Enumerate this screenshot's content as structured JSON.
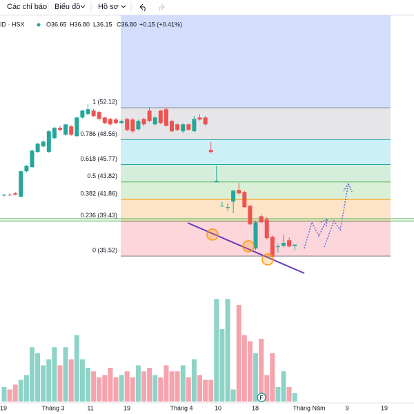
{
  "toolbar": {
    "indicators": "Các chỉ báo",
    "chart": "Biểu đồ",
    "profile": "Hồ sơ"
  },
  "chart_data": {
    "type": "candlestick",
    "symbol": "ID · HSX",
    "legend": {
      "open": "O36.65",
      "high": "H36.80",
      "low": "L36.15",
      "close": "C36.80",
      "change": "+0.15 (+0.41%)"
    },
    "up_color": "#26a69a",
    "down_color": "#ef5350",
    "volume_up_color": "#8fd3c8",
    "volume_down_color": "#f5a3ad",
    "ylim": [
      29.5,
      62.5
    ],
    "open": [
      42.31,
      42.39,
      42.54,
      42.16,
      45.02,
      45.48,
      47.18,
      47.8,
      47.18,
      48.72,
      49.88,
      49.11,
      50.04,
      48.95,
      51.04,
      51.42,
      51.81,
      51.66,
      51.04,
      50.88,
      50.81,
      50.42,
      50.88,
      50.81,
      49.73,
      50.88,
      51.81,
      50.27,
      51.81,
      51.97,
      50.65,
      50.27,
      49.5,
      50.27,
      49.5,
      51.04,
      51.04,
      47.41,
      43.78,
      41.15,
      41.0,
      41.62,
      42.93,
      42.7,
      41.15,
      36.37,
      39.98,
      39.61,
      37.68,
      36.52,
      36.68,
      37.29,
      36.65
    ],
    "high": [
      42.47,
      42.54,
      42.7,
      45.1,
      45.7,
      47.4,
      48.2,
      48.5,
      49.6,
      50.0,
      50.1,
      50.3,
      50.2,
      51.1,
      51.9,
      52.58,
      52.0,
      51.8,
      51.1,
      51.0,
      51.0,
      50.8,
      51.0,
      51.0,
      50.8,
      51.0,
      52.2,
      51.2,
      51.9,
      52.2,
      50.8,
      50.4,
      50.4,
      50.4,
      51.2,
      51.4,
      51.2,
      48.3,
      45.63,
      41.6,
      41.4,
      42.9,
      43.7,
      42.8,
      41.3,
      39.5,
      40.2,
      39.9,
      37.8,
      36.9,
      37.9,
      37.6,
      36.8
    ],
    "low": [
      42.16,
      42.24,
      42.31,
      42.1,
      44.9,
      45.4,
      47.1,
      47.7,
      47.1,
      48.6,
      49.5,
      49.0,
      49.0,
      48.9,
      50.9,
      51.3,
      51.1,
      50.7,
      50.3,
      50.1,
      50.3,
      50.3,
      49.5,
      49.3,
      49.6,
      50.1,
      50.5,
      50.1,
      50.3,
      50.0,
      49.4,
      49.5,
      49.3,
      49.6,
      49.4,
      50.7,
      50.1,
      47.0,
      43.85,
      41.15,
      40.6,
      40.3,
      42.4,
      40.9,
      39.0,
      36.2,
      39.2,
      37.4,
      35.3,
      35.9,
      36.5,
      36.5,
      36.15
    ],
    "close": [
      42.39,
      42.31,
      42.39,
      45.02,
      45.63,
      47.33,
      48.1,
      48.34,
      49.5,
      49.88,
      49.65,
      50.27,
      49.11,
      51.04,
      51.81,
      51.97,
      51.19,
      50.88,
      50.42,
      50.27,
      50.42,
      50.65,
      49.65,
      49.5,
      50.65,
      50.27,
      50.65,
      51.04,
      50.42,
      50.11,
      49.5,
      49.65,
      50.27,
      49.65,
      50.88,
      50.81,
      50.27,
      47.18,
      43.94,
      41.15,
      41.0,
      42.85,
      42.54,
      41.0,
      39.07,
      39.3,
      39.3,
      37.53,
      35.44,
      36.6,
      36.99,
      36.6,
      36.8
    ],
    "volume": [
      12,
      10,
      14,
      18,
      22,
      45,
      40,
      30,
      35,
      45,
      30,
      45,
      35,
      55,
      35,
      28,
      25,
      20,
      22,
      28,
      20,
      22,
      25,
      20,
      30,
      25,
      28,
      22,
      20,
      30,
      25,
      25,
      30,
      20,
      35,
      22,
      18,
      18,
      85,
      60,
      85,
      10,
      80,
      55,
      50,
      40,
      52,
      22,
      40,
      12,
      25,
      12,
      7
    ],
    "x_labels": [
      "19",
      "Tháng 3",
      "11",
      "19",
      "Tháng 4",
      "10",
      "18",
      "Tháng Năm",
      "9",
      "19"
    ],
    "fib_top_fill": "#d3defc",
    "fib_levels": [
      {
        "label": "1 (52.12)",
        "value": 52.12,
        "color": "#787b86",
        "fill": "#e6e6e8"
      },
      {
        "label": "0.786 (48.56)",
        "value": 48.56,
        "color": "#26a69a",
        "fill": "#ccf0f8"
      },
      {
        "label": "0.618 (45.77)",
        "value": 45.77,
        "color": "#26a69a",
        "fill": "#d5eedb"
      },
      {
        "label": "0.5 (43.82)",
        "value": 43.82,
        "color": "#4caf50",
        "fill": "#d9efd6"
      },
      {
        "label": "0.382 (41.86)",
        "value": 41.86,
        "color": "#ff9800",
        "fill": "#fde4c8"
      },
      {
        "label": "0.236 (39.43)",
        "value": 39.43,
        "color": "#f23645",
        "fill": "#fcd6da"
      },
      {
        "label": "0 (35.52)",
        "value": 35.52,
        "color": "#787b86"
      }
    ],
    "support_lines": [
      39.7,
      39.45
    ],
    "support_color": "#4caf50"
  }
}
